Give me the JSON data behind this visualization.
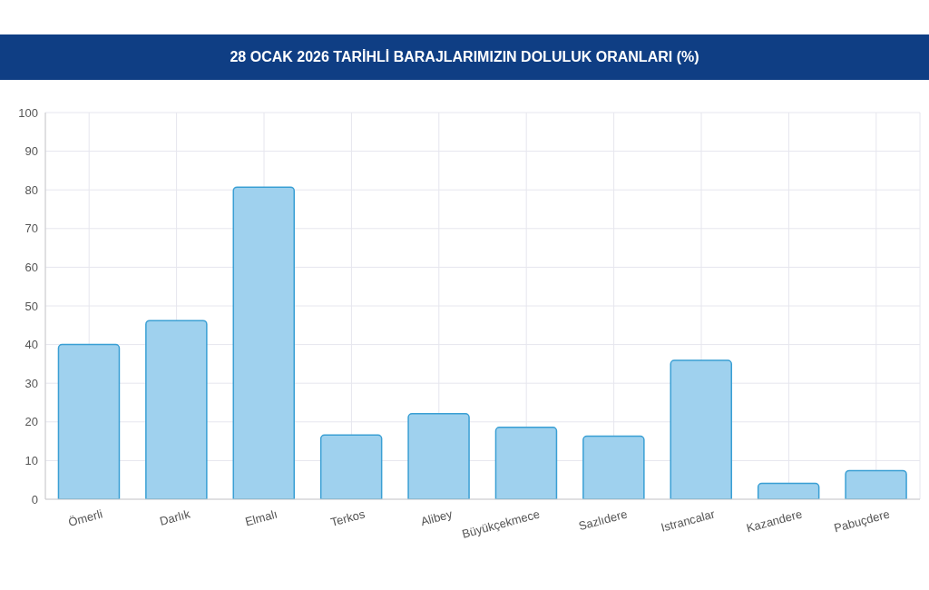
{
  "chart_data": {
    "type": "bar",
    "title": "28 OCAK 2026 TARİHLİ BARAJLARIMIZIN DOLULUK ORANLARI (%)",
    "categories": [
      "Ömerli",
      "Darlık",
      "Elmalı",
      "Terkos",
      "Alibey",
      "Büyükçekmece",
      "Sazlıdere",
      "Istrancalar",
      "Kazandere",
      "Pabuçdere"
    ],
    "values": [
      40.0,
      46.2,
      80.7,
      16.6,
      22.1,
      18.6,
      16.3,
      35.9,
      4.1,
      7.4
    ],
    "color": "#9fd1ee",
    "ylim": [
      0,
      100
    ],
    "yticks": [
      0,
      10,
      20,
      30,
      40,
      50,
      60,
      70,
      80,
      90,
      100
    ],
    "grid": true
  }
}
